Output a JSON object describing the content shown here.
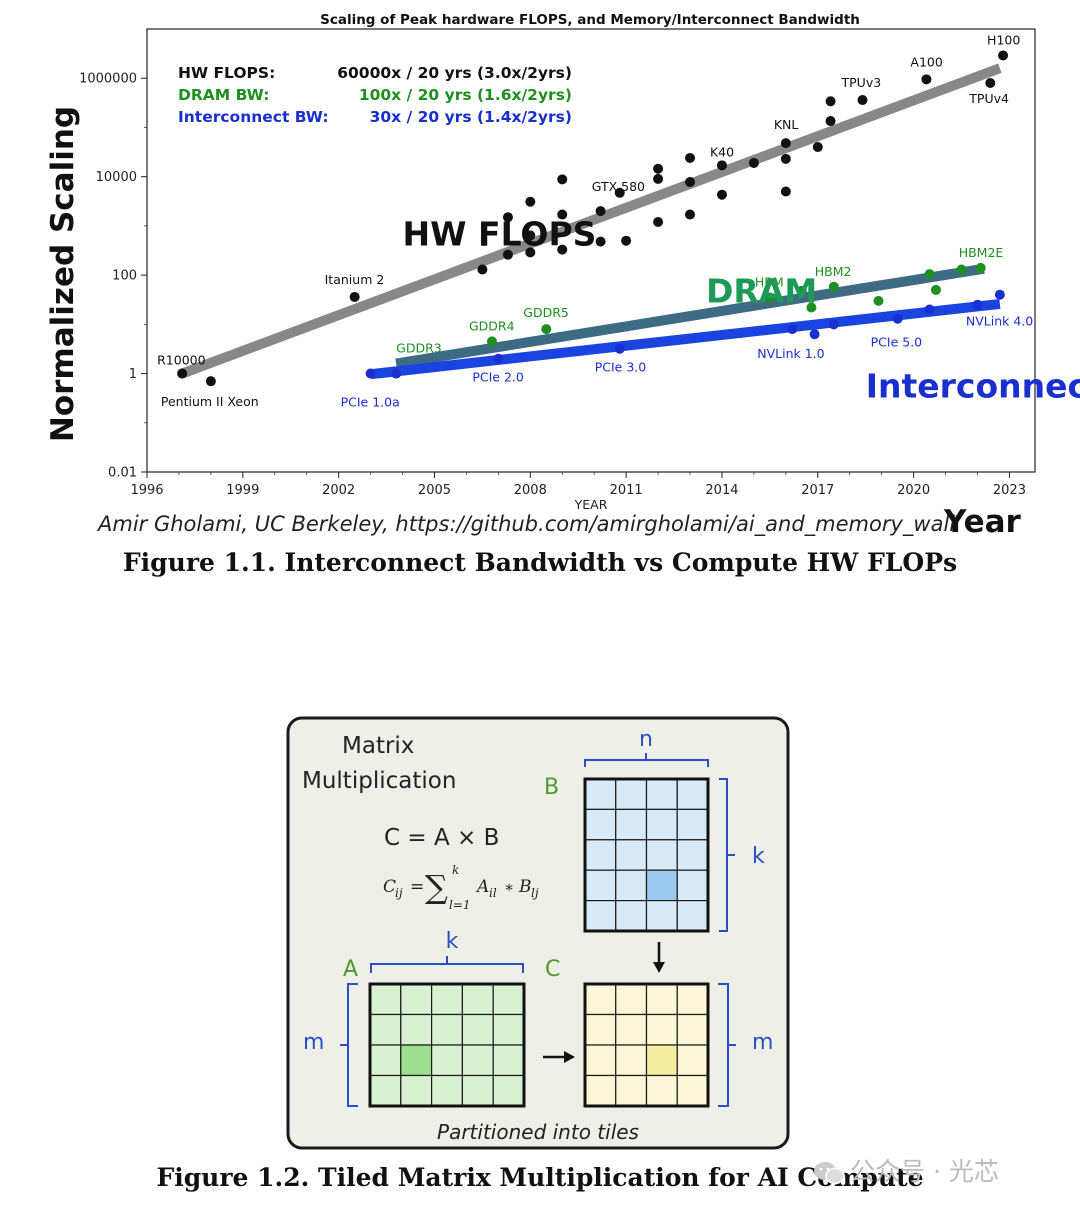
{
  "chart_data": {
    "type": "scatter",
    "title": "Scaling of Peak hardware FLOPS, and Memory/Interconnect Bandwidth",
    "xlabel": "YEAR",
    "ylabel": "Normalized Scaling",
    "y_scale": "log",
    "xlim": [
      1996,
      2023.8
    ],
    "ylim": [
      0.01,
      10000000
    ],
    "x_ticks": [
      1996,
      1999,
      2002,
      2005,
      2008,
      2011,
      2014,
      2017,
      2020,
      2023
    ],
    "y_ticks": [
      0.01,
      1,
      100,
      10000,
      1000000
    ],
    "y_tick_labels": [
      "0.01",
      "1",
      "100",
      "10000",
      "1000000"
    ],
    "grid": false,
    "legend": {
      "placement": "top-left",
      "entries": [
        {
          "name": "HW FLOPS:",
          "value": "60000x / 20 yrs (3.0x/2yrs)",
          "color": "#111111"
        },
        {
          "name": "DRAM BW:",
          "value": "100x / 20 yrs (1.6x/2yrs)",
          "color": "#1f8f1f"
        },
        {
          "name": "Interconnect BW:",
          "value": "30x / 20 yrs (1.4x/2yrs)",
          "color": "#1a2fd0"
        }
      ]
    },
    "series": [
      {
        "name": "HW FLOPS",
        "color": "#111111",
        "points": [
          {
            "x": 1997.1,
            "y": 1.0,
            "label": "R10000"
          },
          {
            "x": 1998.0,
            "y": 0.7,
            "label": "Pentium II Xeon"
          },
          {
            "x": 2002.5,
            "y": 36,
            "label": "Itanium 2"
          },
          {
            "x": 2006.5,
            "y": 130
          },
          {
            "x": 2007.3,
            "y": 1500
          },
          {
            "x": 2007.3,
            "y": 260
          },
          {
            "x": 2008.0,
            "y": 3100
          },
          {
            "x": 2008.0,
            "y": 640
          },
          {
            "x": 2008.0,
            "y": 290
          },
          {
            "x": 2009.0,
            "y": 8800
          },
          {
            "x": 2009.0,
            "y": 1700
          },
          {
            "x": 2009.0,
            "y": 330
          },
          {
            "x": 2010.2,
            "y": 2000
          },
          {
            "x": 2010.2,
            "y": 480
          },
          {
            "x": 2010.8,
            "y": 4700,
            "label": "GTX 580"
          },
          {
            "x": 2011.0,
            "y": 500
          },
          {
            "x": 2012.0,
            "y": 14500
          },
          {
            "x": 2012.0,
            "y": 9000
          },
          {
            "x": 2012.0,
            "y": 1200
          },
          {
            "x": 2013.0,
            "y": 24000
          },
          {
            "x": 2013.0,
            "y": 7800
          },
          {
            "x": 2013.0,
            "y": 1700
          },
          {
            "x": 2014.0,
            "y": 17000,
            "label": "K40"
          },
          {
            "x": 2014.0,
            "y": 4300
          },
          {
            "x": 2015.0,
            "y": 19000
          },
          {
            "x": 2016.0,
            "y": 48000,
            "label": "KNL"
          },
          {
            "x": 2016.0,
            "y": 23000
          },
          {
            "x": 2016.0,
            "y": 5000
          },
          {
            "x": 2017.0,
            "y": 40000
          },
          {
            "x": 2017.4,
            "y": 135000
          },
          {
            "x": 2017.4,
            "y": 340000
          },
          {
            "x": 2018.4,
            "y": 360000,
            "label": "TPUv3"
          },
          {
            "x": 2020.4,
            "y": 950000,
            "label": "A100"
          },
          {
            "x": 2022.4,
            "y": 800000,
            "label": "TPUv4"
          },
          {
            "x": 2022.8,
            "y": 2900000,
            "label": "H100"
          }
        ],
        "trend": [
          {
            "x": 1997.1,
            "y": 1.0
          },
          {
            "x": 2022.7,
            "y": 1600000
          }
        ]
      },
      {
        "name": "DRAM",
        "color": "#1f8f1f",
        "points": [
          {
            "x": 2003.8,
            "y": 1.0,
            "label": "GDDR3"
          },
          {
            "x": 2006.8,
            "y": 4.5,
            "label": "GDDR4"
          },
          {
            "x": 2008.5,
            "y": 8.0,
            "label": "GDDR5"
          },
          {
            "x": 2015.5,
            "y": 35,
            "label": "HBM"
          },
          {
            "x": 2016.5,
            "y": 48
          },
          {
            "x": 2016.8,
            "y": 22
          },
          {
            "x": 2017.5,
            "y": 58,
            "label": "HBM2"
          },
          {
            "x": 2018.9,
            "y": 30
          },
          {
            "x": 2020.5,
            "y": 105
          },
          {
            "x": 2020.7,
            "y": 50
          },
          {
            "x": 2021.5,
            "y": 130
          },
          {
            "x": 2022.1,
            "y": 140,
            "label": "HBM2E"
          }
        ],
        "trend": [
          {
            "x": 2003.8,
            "y": 1.6
          },
          {
            "x": 2022.2,
            "y": 135
          }
        ]
      },
      {
        "name": "Interconnect BW",
        "color": "#1a2fd0",
        "points": [
          {
            "x": 2003.0,
            "y": 1.0,
            "label": "PCIe 1.0a"
          },
          {
            "x": 2003.8,
            "y": 1.0
          },
          {
            "x": 2007.0,
            "y": 2.0,
            "label": "PCIe 2.0"
          },
          {
            "x": 2010.8,
            "y": 3.2,
            "label": "PCIe 3.0"
          },
          {
            "x": 2016.2,
            "y": 8.0,
            "label": "NVLink 1.0"
          },
          {
            "x": 2016.9,
            "y": 6.3
          },
          {
            "x": 2017.5,
            "y": 10
          },
          {
            "x": 2019.5,
            "y": 13,
            "label": "PCIe 5.0"
          },
          {
            "x": 2020.5,
            "y": 20
          },
          {
            "x": 2022.0,
            "y": 25
          },
          {
            "x": 2022.7,
            "y": 40,
            "label": "NVLink 4.0"
          }
        ],
        "trend": [
          {
            "x": 2003.0,
            "y": 0.97
          },
          {
            "x": 2022.7,
            "y": 26
          }
        ]
      }
    ],
    "annotations": [
      {
        "text": "HW FLOPS",
        "x": 2004.0,
        "y": 400,
        "color": "#111111"
      },
      {
        "text": "DRAM",
        "x": 2013.5,
        "y": 28,
        "color": "#1f9a56"
      },
      {
        "text": "Interconnect BW",
        "x": 2018.5,
        "y": 0.33,
        "color": "#1a2fd0"
      }
    ]
  },
  "figure1": {
    "credit": "Amir Gholami, UC Berkeley, https://github.com/amirgholami/ai_and_memory_wall",
    "year_label": "Year",
    "caption": "Figure 1.1. Interconnect Bandwidth vs Compute HW FLOPs"
  },
  "figure2": {
    "title_line1": "Matrix",
    "title_line2": "Multiplication",
    "formula": "C = A × B",
    "sum_C": "C",
    "sum_ij": "ij",
    "sum_eq": "=",
    "sum_sigma": "∑",
    "sum_top": "k",
    "sum_bottom": "l=1",
    "sum_A": "A",
    "sum_il": "il",
    "sum_star": "∗",
    "sum_B": "B",
    "sum_lj": "lj",
    "label_B": "B",
    "label_A": "A",
    "label_C": "C",
    "dim_n": "n",
    "dim_k_right": "k",
    "dim_k_top": "k",
    "dim_m_left": "m",
    "dim_m_right": "m",
    "footer": "Partitioned into tiles",
    "caption": "Figure 1.2. Tiled Matrix Multiplication for AI Compute",
    "colors": {
      "panel_bg": "#efefe9",
      "label_green": "#4f9a2e",
      "dim_blue": "#2a4fc4",
      "tile_A": "#d8f1d0",
      "tile_A_hi": "#9ede90",
      "tile_B": "#d8e9f8",
      "tile_B_hi": "#9cc9f0",
      "tile_C": "#fbf7d8",
      "tile_C_hi": "#f5eda0"
    }
  },
  "watermark": "公众号 · 光芯"
}
